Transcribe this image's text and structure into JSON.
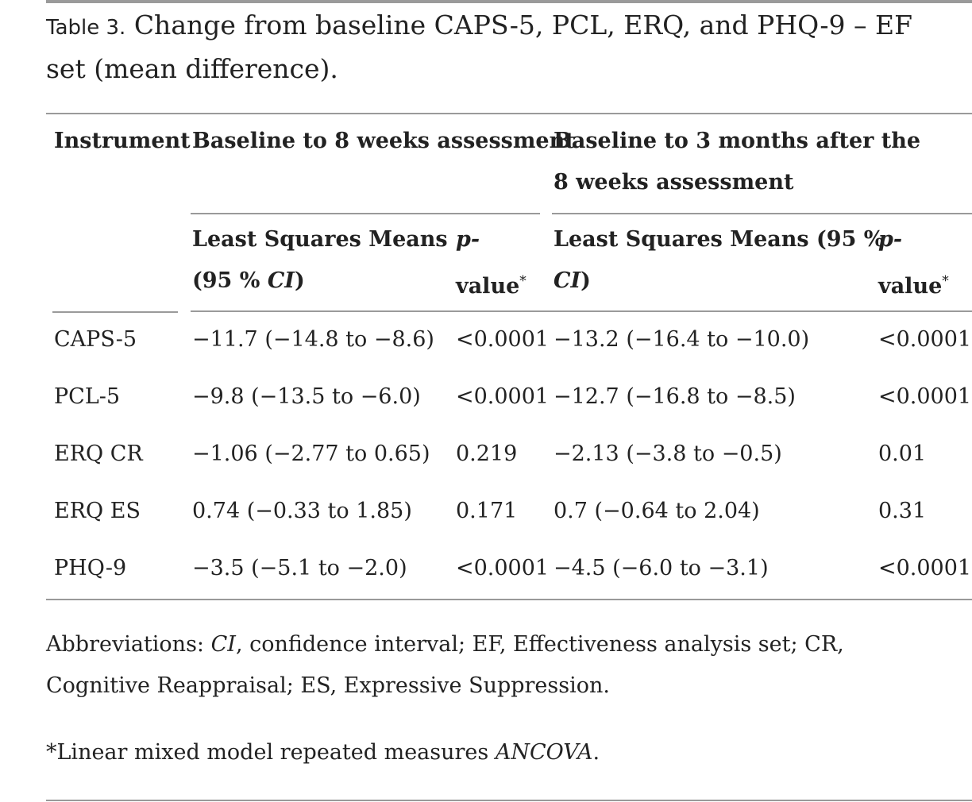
{
  "caption": {
    "label": "Table 3.",
    "text": "Change from baseline CAPS-5, PCL, ERQ, and PHQ-9 – EF set (mean difference)."
  },
  "headers": {
    "instrument": "Instrument",
    "group1": "Baseline to 8 weeks assessment",
    "group2": "Baseline to 3 months after the 8 weeks assessment",
    "lsm_part1": "Least Squares Means",
    "lsm_part2": "(95 % ",
    "lsm_ci": "CI",
    "lsm_close": ")",
    "lsm2_part1": "Least Squares Means (95 %",
    "p_part1": "p-",
    "p_part2": "value",
    "p_star": "*"
  },
  "rows": [
    {
      "instrument": "CAPS-5",
      "lsm8": "−11.7 (−14.8 to −8.6)",
      "p8": "<0.0001",
      "lsm3": "−13.2 (−16.4 to −10.0)",
      "p3": "<0.0001"
    },
    {
      "instrument": "PCL-5",
      "lsm8": "−9.8 (−13.5 to −6.0)",
      "p8": "<0.0001",
      "lsm3": "−12.7 (−16.8 to −8.5)",
      "p3": "<0.0001"
    },
    {
      "instrument": "ERQ CR",
      "lsm8": "−1.06 (−2.77 to 0.65)",
      "p8": "0.219",
      "lsm3": "−2.13 (−3.8 to −0.5)",
      "p3": "0.01"
    },
    {
      "instrument": "ERQ ES",
      "lsm8": "0.74 (−0.33 to 1.85)",
      "p8": "0.171",
      "lsm3": "0.7 (−0.64 to 2.04)",
      "p3": "0.31"
    },
    {
      "instrument": "PHQ-9",
      "lsm8": "−3.5 (−5.1 to −2.0)",
      "p8": "<0.0001",
      "lsm3": "−4.5 (−6.0 to −3.1)",
      "p3": "<0.0001"
    }
  ],
  "footnotes": {
    "abbrev_prefix": "Abbreviations: ",
    "abbrev_ci": "CI",
    "abbrev_rest": ", confidence interval; EF, Effectiveness analysis set; CR, Cognitive Reappraisal; ES, Expressive Suppression.",
    "star": "*",
    "model_text": "Linear mixed model repeated measures ",
    "model_italic": "ANCOVA",
    "model_end": "."
  }
}
